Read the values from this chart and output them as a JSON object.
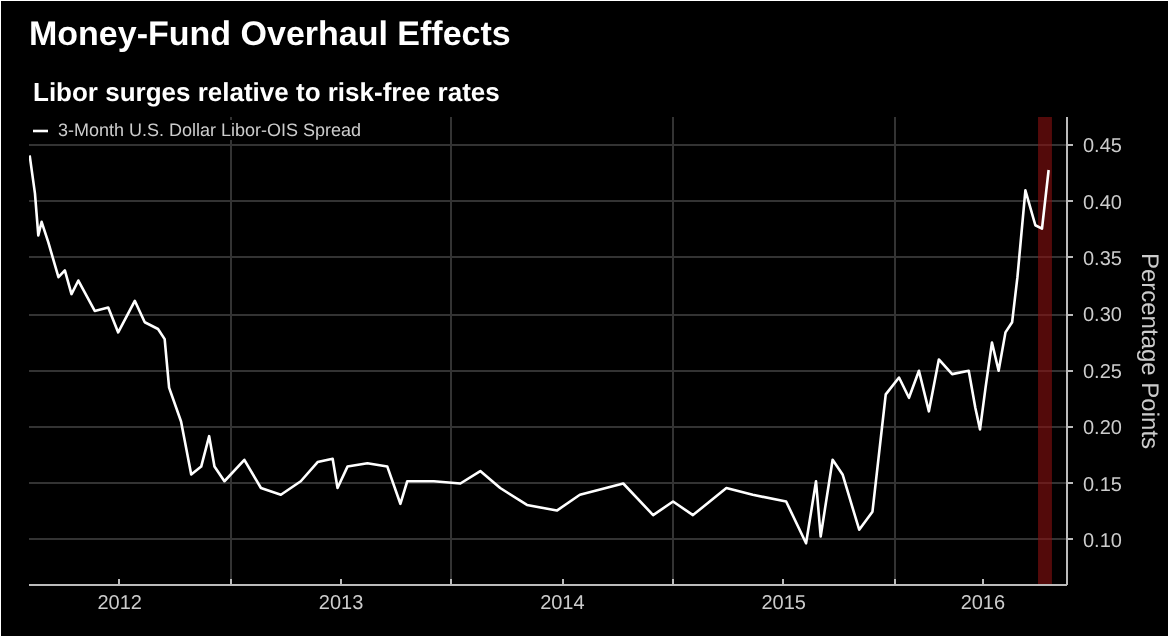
{
  "chart_data": {
    "type": "line",
    "title": "Money-Fund Overhaul Effects",
    "subtitle": "Libor surges relative to risk-free rates",
    "ylabel": "Percentage Points",
    "x": [
      2012.093,
      2012.117,
      2012.132,
      2012.147,
      2012.177,
      2012.223,
      2012.252,
      2012.282,
      2012.313,
      2012.387,
      2012.448,
      2012.493,
      2012.568,
      2012.613,
      2012.673,
      2012.703,
      2012.723,
      2012.777,
      2012.823,
      2012.868,
      2012.904,
      2012.928,
      2012.973,
      2013.063,
      2013.138,
      2013.228,
      2013.318,
      2013.394,
      2013.462,
      2013.484,
      2013.529,
      2013.619,
      2013.709,
      2013.768,
      2013.799,
      2013.919,
      2014.039,
      2014.129,
      2014.219,
      2014.34,
      2014.475,
      2014.579,
      2014.775,
      2014.91,
      2015.0,
      2015.09,
      2015.241,
      2015.36,
      2015.511,
      2015.601,
      2015.646,
      2015.667,
      2015.721,
      2015.766,
      2015.841,
      2015.901,
      2015.961,
      2016.021,
      2016.066,
      2016.111,
      2016.156,
      2016.201,
      2016.261,
      2016.336,
      2016.366,
      2016.387,
      2016.412,
      2016.441,
      2016.471,
      2016.502,
      2016.532,
      2016.556,
      2016.592,
      2016.637,
      2016.667,
      2016.697
    ],
    "series": [
      {
        "name": "3-Month U.S. Dollar Libor-OIS Spread",
        "color": "#ffffff",
        "values": [
          0.441,
          0.407,
          0.37,
          0.382,
          0.364,
          0.333,
          0.339,
          0.318,
          0.33,
          0.303,
          0.306,
          0.284,
          0.312,
          0.293,
          0.287,
          0.278,
          0.235,
          0.205,
          0.158,
          0.165,
          0.192,
          0.165,
          0.152,
          0.171,
          0.146,
          0.14,
          0.152,
          0.169,
          0.172,
          0.146,
          0.165,
          0.168,
          0.165,
          0.132,
          0.152,
          0.152,
          0.15,
          0.161,
          0.146,
          0.131,
          0.126,
          0.14,
          0.15,
          0.122,
          0.134,
          0.122,
          0.146,
          0.14,
          0.134,
          0.097,
          0.152,
          0.103,
          0.171,
          0.158,
          0.109,
          0.125,
          0.229,
          0.244,
          0.226,
          0.25,
          0.214,
          0.26,
          0.247,
          0.25,
          0.217,
          0.198,
          0.235,
          0.275,
          0.25,
          0.284,
          0.293,
          0.333,
          0.41,
          0.379,
          0.376,
          0.428
        ]
      }
    ],
    "xlim": [
      2012.09,
      2016.78
    ],
    "xticks": [
      {
        "value": 2012.5,
        "label": "2012"
      },
      {
        "value": 2013,
        "label": null
      },
      {
        "value": 2013.5,
        "label": "2013"
      },
      {
        "value": 2014,
        "label": null
      },
      {
        "value": 2014.5,
        "label": "2014"
      },
      {
        "value": 2015,
        "label": null
      },
      {
        "value": 2015.5,
        "label": "2015"
      },
      {
        "value": 2016,
        "label": null
      },
      {
        "value": 2016.4,
        "label": "2016"
      }
    ],
    "ylim": [
      0.06,
      0.475
    ],
    "yticks": [
      {
        "value": 0.1,
        "label": "0.10"
      },
      {
        "value": 0.15,
        "label": "0.15"
      },
      {
        "value": 0.2,
        "label": "0.20"
      },
      {
        "value": 0.25,
        "label": "0.25"
      },
      {
        "value": 0.3,
        "label": "0.30"
      },
      {
        "value": 0.35,
        "label": "0.35"
      },
      {
        "value": 0.4,
        "label": "0.40"
      },
      {
        "value": 0.45,
        "label": "0.45"
      }
    ],
    "bands": [
      {
        "axis": "x",
        "from": 2016.649,
        "to": 2016.712,
        "color": "#8b1010"
      }
    ],
    "grid": true,
    "legend": "top left",
    "line_style": "solid"
  }
}
